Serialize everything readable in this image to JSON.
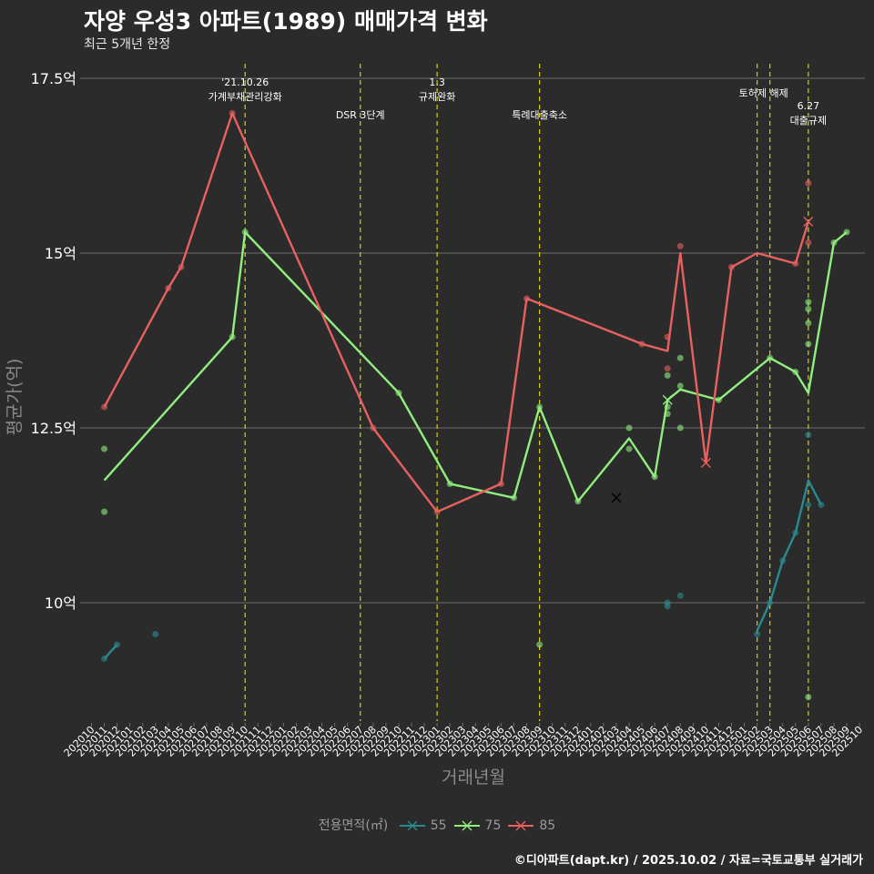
{
  "chart_data": {
    "type": "line",
    "title": "자양 우성3 아파트(1989) 매매가격 변화",
    "subtitle": "최근 5개년 한정",
    "xlabel": "거래년월",
    "ylabel": "평균가(억)",
    "caption": "©디아파트(dapt.kr) / 2025.10.02 / 자료=국토교통부 실거래가",
    "ylim": [
      8.3,
      17.9
    ],
    "y_ticks": [
      {
        "value": 10,
        "label": "10억"
      },
      {
        "value": 12.5,
        "label": "12.5억"
      },
      {
        "value": 15,
        "label": "15억"
      },
      {
        "value": 17.5,
        "label": "17.5억"
      }
    ],
    "x_categories": [
      "202010",
      "202011",
      "202012",
      "202101",
      "202102",
      "202103",
      "202104",
      "202105",
      "202106",
      "202107",
      "202108",
      "202109",
      "202110",
      "202111",
      "202112",
      "202201",
      "202202",
      "202203",
      "202204",
      "202205",
      "202206",
      "202207",
      "202208",
      "202209",
      "202210",
      "202211",
      "202212",
      "202301",
      "202302",
      "202303",
      "202304",
      "202305",
      "202306",
      "202307",
      "202308",
      "202309",
      "202310",
      "202311",
      "202312",
      "202401",
      "202402",
      "202403",
      "202404",
      "202405",
      "202406",
      "202407",
      "202408",
      "202409",
      "202410",
      "202411",
      "202412",
      "202501",
      "202502",
      "202503",
      "202504",
      "202505",
      "202506",
      "202507",
      "202508",
      "202509",
      "202510"
    ],
    "legend_title": "전용면적(㎡)",
    "series": [
      {
        "name": "55",
        "color": "#2a8a8f",
        "line": [
          [
            "202011",
            9.2
          ],
          [
            "202012",
            9.4
          ]
        ],
        "line2": [
          [
            "202502",
            9.6
          ],
          [
            "202503",
            10.0
          ],
          [
            "202504",
            10.6
          ],
          [
            "202505",
            11.0
          ],
          [
            "202506",
            11.75
          ],
          [
            "202507",
            11.4
          ]
        ],
        "points": [
          [
            "202011",
            9.2
          ],
          [
            "202012",
            9.4
          ],
          [
            "202103",
            9.55
          ],
          [
            "202407",
            10.0
          ],
          [
            "202407",
            9.95
          ],
          [
            "202408",
            10.1
          ],
          [
            "202502",
            9.55
          ],
          [
            "202503",
            10.0
          ],
          [
            "202504",
            10.6
          ],
          [
            "202505",
            11.0
          ],
          [
            "202506",
            12.4
          ],
          [
            "202506",
            11.4
          ],
          [
            "202507",
            11.4
          ]
        ],
        "crosses": []
      },
      {
        "name": "75",
        "color": "#90ee7e",
        "line": [
          [
            "202011",
            11.75
          ],
          [
            "202109",
            13.8
          ],
          [
            "202110",
            15.3
          ],
          [
            "202210",
            13.0
          ],
          [
            "202302",
            11.7
          ],
          [
            "202307",
            11.5
          ],
          [
            "202309",
            12.8
          ],
          [
            "202312",
            11.45
          ],
          [
            "202404",
            12.35
          ],
          [
            "202406",
            11.8
          ],
          [
            "202407",
            12.9
          ],
          [
            "202408",
            13.05
          ],
          [
            "202411",
            12.9
          ],
          [
            "202503",
            13.5
          ],
          [
            "202505",
            13.3
          ],
          [
            "202506",
            13.0
          ],
          [
            "202508",
            15.15
          ],
          [
            "202509",
            15.3
          ]
        ],
        "points": [
          [
            "202011",
            12.2
          ],
          [
            "202011",
            11.3
          ],
          [
            "202109",
            13.8
          ],
          [
            "202110",
            15.3
          ],
          [
            "202210",
            13.0
          ],
          [
            "202302",
            11.7
          ],
          [
            "202307",
            11.5
          ],
          [
            "202309",
            12.8
          ],
          [
            "202309",
            9.4
          ],
          [
            "202312",
            11.45
          ],
          [
            "202404",
            12.5
          ],
          [
            "202404",
            12.2
          ],
          [
            "202406",
            11.8
          ],
          [
            "202407",
            13.25
          ],
          [
            "202407",
            12.7
          ],
          [
            "202407",
            12.8
          ],
          [
            "202408",
            13.5
          ],
          [
            "202408",
            13.1
          ],
          [
            "202408",
            12.5
          ],
          [
            "202411",
            12.9
          ],
          [
            "202503",
            13.5
          ],
          [
            "202505",
            13.3
          ],
          [
            "202506",
            14.3
          ],
          [
            "202506",
            14.2
          ],
          [
            "202506",
            14.0
          ],
          [
            "202506",
            13.7
          ],
          [
            "202506",
            8.65
          ],
          [
            "202508",
            15.15
          ],
          [
            "202509",
            15.3
          ]
        ],
        "crosses": [
          [
            "202403",
            11.5
          ],
          [
            "202407",
            12.9
          ]
        ]
      },
      {
        "name": "85",
        "color": "#e86060",
        "line": [
          [
            "202011",
            12.8
          ],
          [
            "202104",
            14.5
          ],
          [
            "202105",
            14.8
          ],
          [
            "202109",
            17.0
          ],
          [
            "202208",
            12.5
          ],
          [
            "202301",
            11.3
          ],
          [
            "202306",
            11.7
          ],
          [
            "202308",
            14.35
          ],
          [
            "202405",
            13.7
          ],
          [
            "202407",
            13.6
          ],
          [
            "202408",
            15.0
          ],
          [
            "202410",
            12.0
          ],
          [
            "202412",
            14.8
          ],
          [
            "202502",
            15.0
          ],
          [
            "202505",
            14.85
          ],
          [
            "202506",
            15.45
          ]
        ],
        "points": [
          [
            "202011",
            12.8
          ],
          [
            "202104",
            14.5
          ],
          [
            "202105",
            14.8
          ],
          [
            "202109",
            17.0
          ],
          [
            "202208",
            12.5
          ],
          [
            "202301",
            11.3
          ],
          [
            "202306",
            11.7
          ],
          [
            "202308",
            14.35
          ],
          [
            "202405",
            13.7
          ],
          [
            "202407",
            13.8
          ],
          [
            "202407",
            13.35
          ],
          [
            "202408",
            15.1
          ],
          [
            "202412",
            14.8
          ],
          [
            "202505",
            14.85
          ],
          [
            "202506",
            16.0
          ],
          [
            "202506",
            15.15
          ]
        ],
        "crosses": [
          [
            "202410",
            12.0
          ],
          [
            "202506",
            15.45
          ]
        ]
      }
    ],
    "annotations": [
      {
        "x": "202110",
        "lines": [
          "'21.10.26",
          "가계부채관리강화"
        ],
        "row": 0
      },
      {
        "x": "202207",
        "lines": [
          "DSR 3단계"
        ],
        "row": 2
      },
      {
        "x": "202301",
        "lines": [
          "1.3",
          "규제완화"
        ],
        "row": 0
      },
      {
        "x": "202309",
        "lines": [
          "특례대출축소"
        ],
        "row": 2
      },
      {
        "x": "202502",
        "lines": [],
        "row": 0
      },
      {
        "x": "202503",
        "lines": [
          "토허제 해제"
        ],
        "row": 1,
        "anchor": "between"
      },
      {
        "x": "202506",
        "lines": [
          "6.27",
          "대출규제"
        ],
        "row": 3
      }
    ]
  }
}
